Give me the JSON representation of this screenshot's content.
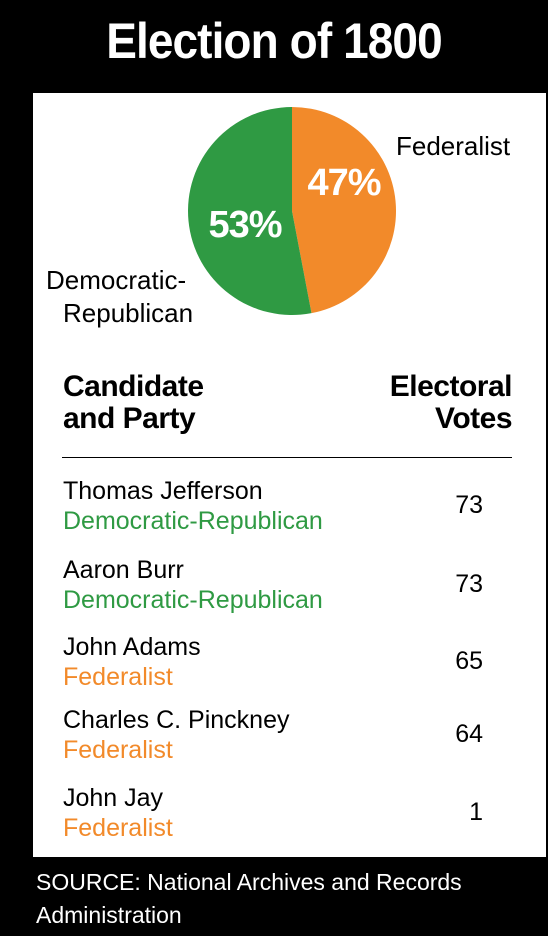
{
  "header": {
    "title": "Election of 1800"
  },
  "colors": {
    "federalist": "#f28a2a",
    "democratic_republican": "#2f9a43",
    "background": "#000000",
    "panel": "#ffffff"
  },
  "chart_data": {
    "type": "pie",
    "title": "Election of 1800",
    "slices": [
      {
        "label_line1": "Federalist",
        "label_line2": "",
        "value": 47,
        "display": "47%",
        "color": "#f28a2a"
      },
      {
        "label_line1": "Democratic-",
        "label_line2": "Republican",
        "value": 53,
        "display": "53%",
        "color": "#2f9a43"
      }
    ]
  },
  "table": {
    "header_left_line1": "Candidate",
    "header_left_line2": "and Party",
    "header_right_line1": "Electoral",
    "header_right_line2": "Votes",
    "rows": [
      {
        "name": "Thomas Jefferson",
        "party": "Democratic-Republican",
        "party_color": "#2f9a43",
        "votes": "73"
      },
      {
        "name": "Aaron Burr",
        "party": "Democratic-Republican",
        "party_color": "#2f9a43",
        "votes": "73"
      },
      {
        "name": "John Adams",
        "party": "Federalist",
        "party_color": "#f28a2a",
        "votes": "65"
      },
      {
        "name": "Charles C. Pinckney",
        "party": "Federalist",
        "party_color": "#f28a2a",
        "votes": "64"
      },
      {
        "name": "John Jay",
        "party": "Federalist",
        "party_color": "#f28a2a",
        "votes": "1"
      }
    ]
  },
  "footer": {
    "source": "SOURCE: National Archives and Records Administration"
  }
}
